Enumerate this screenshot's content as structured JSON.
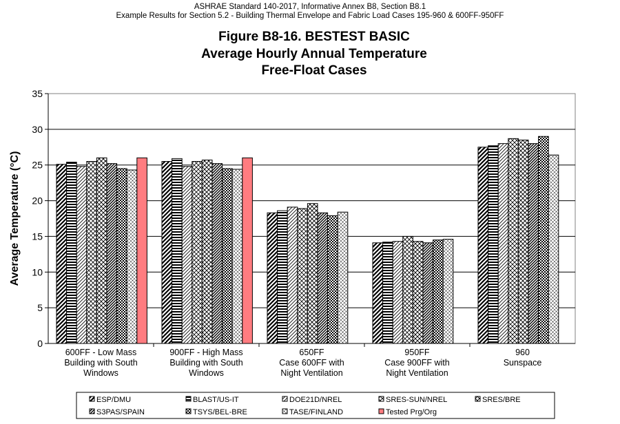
{
  "header": {
    "line1": "ASHRAE Standard 140-2017, Informative Annex B8, Section B8.1",
    "line2": "Example Results for Section 5.2 - Building Thermal Envelope and Fabric Load Cases 195-960 & 600FF-950FF"
  },
  "chart_data": {
    "type": "bar",
    "title": [
      "Figure B8-16.  BESTEST BASIC",
      "Average Hourly Annual Temperature",
      "Free-Float Cases"
    ],
    "xlabel": "",
    "ylabel": "Average Temperature (°C)",
    "ylim": [
      0,
      35
    ],
    "yticks": [
      0,
      5,
      10,
      15,
      20,
      25,
      30,
      35
    ],
    "grid": true,
    "legend_position": "bottom",
    "categories": [
      [
        "600FF - Low Mass",
        "Building with South",
        "Windows"
      ],
      [
        "900FF - High Mass",
        "Building with South",
        "Windows"
      ],
      [
        "650FF",
        "Case 600FF with",
        "Night Ventilation"
      ],
      [
        "950FF",
        "Case 900FF with",
        "Night Ventilation"
      ],
      [
        "960",
        "Sunspace"
      ]
    ],
    "series": [
      {
        "name": "ESP/DMU",
        "pattern": "diag-thick",
        "values": [
          25.1,
          25.5,
          18.3,
          14.1,
          27.5
        ]
      },
      {
        "name": "BLAST/US-IT",
        "pattern": "horizontal",
        "values": [
          25.4,
          25.9,
          18.6,
          14.2,
          27.7
        ]
      },
      {
        "name": "DOE21D/NREL",
        "pattern": "diag-thin",
        "values": [
          24.8,
          24.8,
          19.1,
          14.3,
          28.0
        ]
      },
      {
        "name": "SRES-SUN/NREL",
        "pattern": "crosshatch",
        "values": [
          25.5,
          25.5,
          18.9,
          15.0,
          28.7
        ]
      },
      {
        "name": "SRES/BRE",
        "pattern": "diamond",
        "values": [
          26.0,
          25.7,
          19.6,
          14.3,
          28.5
        ]
      },
      {
        "name": "S3PAS/SPAIN",
        "pattern": "diag-dense",
        "values": [
          25.2,
          25.2,
          18.3,
          14.1,
          28.0
        ]
      },
      {
        "name": "TSYS/BEL-BRE",
        "pattern": "checker",
        "values": [
          24.5,
          24.5,
          17.9,
          14.5,
          29.0
        ]
      },
      {
        "name": "TASE/FINLAND",
        "pattern": "fine-diamond",
        "values": [
          24.3,
          24.4,
          18.4,
          14.6,
          26.4
        ]
      },
      {
        "name": "Tested Prg/Org",
        "pattern": "solid",
        "color": "#ff7c80",
        "values": [
          26.0,
          26.0,
          null,
          null,
          null
        ]
      }
    ]
  }
}
